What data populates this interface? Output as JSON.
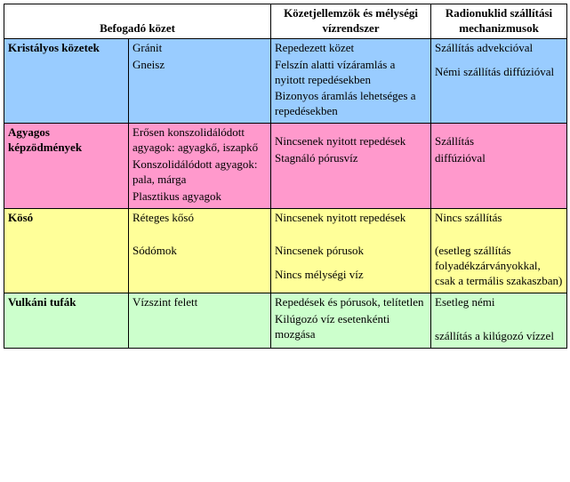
{
  "table": {
    "header": {
      "col12": "Befogadó közet",
      "col3": "Közetjellemzök és mélységi vízrendszer",
      "col4": "Radionuklid szállítási mechanizmusok"
    },
    "rows": [
      {
        "color": "#99ccff",
        "rock": "Kristályos közetek",
        "subtype": [
          "Gránit",
          "Gneisz"
        ],
        "features": [
          "Repedezett közet",
          "Felszín alatti vízáramlás a nyitott repedésekben",
          "Bizonyos áramlás lehetséges a repedésekben"
        ],
        "transport": [
          "Szállítás advekcióval"
        ],
        "transport_tail": [
          "Némi szállítás diffúzióval"
        ]
      },
      {
        "color": "#ff99cc",
        "rock": "Agyagos képzödmények",
        "subtype": [
          "Erősen konszolidálódott agyagok: agyagkő, iszapkő",
          "Konszolidálódott agyagok: pala, márga",
          "Plasztikus agyagok"
        ],
        "features": [],
        "features_tail": [
          "Nincsenek nyitott repedések",
          "Stagnáló pórusvíz"
        ],
        "transport": [],
        "transport_tail": [
          "Szállítás",
          "diffúzióval"
        ]
      },
      {
        "color": "#ffff99",
        "rock": "Kösó",
        "subtype": [
          "Réteges kősó",
          "",
          "Sódómok"
        ],
        "features": [
          "Nincsenek nyitott repedések",
          "",
          "Nincsenek pórusok"
        ],
        "features_tail": [
          "Nincs mélységi víz"
        ],
        "transport": [
          "Nincs szállítás",
          "",
          "(esetleg szállítás folyadékzárványokkal, csak a termális szakaszban)"
        ],
        "transport_tail": []
      },
      {
        "color": "#ccffcc",
        "rock": "Vulkáni tufák",
        "subtype": [
          "Vízszint felett"
        ],
        "features": [
          "Repedések és pórusok, telítetlen",
          "Kilúgozó víz esetenkénti mozgása"
        ],
        "transport": [
          "Esetleg némi",
          "",
          "szállítás a kilúgozó vízzel"
        ],
        "transport_tail": []
      }
    ]
  }
}
